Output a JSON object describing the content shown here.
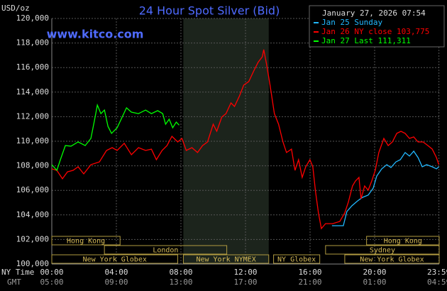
{
  "chart_data": {
    "type": "line",
    "title": "24 Hour Spot Silver (Bid)",
    "website": "www.kitco.com",
    "timestamp": "January 27, 2026 07:54",
    "y_unit": "USD/oz",
    "x_row_labels": [
      "NY Time",
      "GMT"
    ],
    "xlim": [
      0,
      24
    ],
    "xticks": [
      {
        "value": 0,
        "label": "00:00"
      },
      {
        "value": 4,
        "label": "04:00"
      },
      {
        "value": 8,
        "label": "08:00"
      },
      {
        "value": 12,
        "label": "12:00"
      },
      {
        "value": 16,
        "label": "16:00"
      },
      {
        "value": 20,
        "label": "20:00"
      },
      {
        "value": 23.983,
        "label": "23:59"
      }
    ],
    "xticks_gmt": [
      "05:00",
      "09:00",
      "13:00",
      "17:00",
      "21:00",
      "01:00",
      "04:59"
    ],
    "ylim": [
      100000,
      120000
    ],
    "yticks": [
      {
        "value": 100000,
        "label": "100,000"
      },
      {
        "value": 102000,
        "label": "102,000"
      },
      {
        "value": 104000,
        "label": "104,000"
      },
      {
        "value": 106000,
        "label": "106,000"
      },
      {
        "value": 108000,
        "label": "108,000"
      },
      {
        "value": 110000,
        "label": "110,000"
      },
      {
        "value": 112000,
        "label": "112,000"
      },
      {
        "value": 114000,
        "label": "114,000"
      },
      {
        "value": 116000,
        "label": "116,000"
      },
      {
        "value": 118000,
        "label": "118,000"
      },
      {
        "value": 120000,
        "label": "120,000"
      }
    ],
    "grid": true,
    "sessions": [
      {
        "label": "Hong Kong",
        "start": 0,
        "end": 4.23,
        "row": 0
      },
      {
        "label": "Hong Kong",
        "start": 19.5,
        "end": 24,
        "row": 0
      },
      {
        "label": "London",
        "start": 3.26,
        "end": 10.84,
        "row": 1
      },
      {
        "label": "Sydney",
        "start": 16.96,
        "end": 24,
        "row": 1
      },
      {
        "label": "New York Globex",
        "start": 0,
        "end": 7.8,
        "row": 2
      },
      {
        "label": "New York NYMEX",
        "start": 8.15,
        "end": 13.44,
        "row": 2,
        "shaded": true
      },
      {
        "label": "NY Globex",
        "start": 13.74,
        "end": 16.6,
        "row": 2
      },
      {
        "label": "New York Globex",
        "start": 18.15,
        "end": 24,
        "row": 2
      }
    ],
    "series": [
      {
        "name": "Jan 25 Sunday",
        "color": "#22b8ff",
        "x": [
          17.36,
          18.06,
          18.28,
          18.59,
          18.94,
          19.25,
          19.6,
          19.91,
          20.13,
          20.44,
          20.75,
          21.01,
          21.32,
          21.59,
          21.89,
          22.16,
          22.42,
          22.69,
          22.95,
          23.22,
          23.57,
          23.83,
          23.98
        ],
        "values": [
          103120,
          103120,
          104280,
          104740,
          105140,
          105430,
          105610,
          106180,
          107170,
          107750,
          108090,
          107860,
          108320,
          108500,
          109080,
          108790,
          109190,
          108670,
          107920,
          108090,
          107920,
          107750,
          107920
        ]
      },
      {
        "name": "Jan 26 NY close 103,775",
        "color": "#ff0000",
        "x": [
          0,
          0.31,
          0.66,
          0.97,
          1.32,
          1.63,
          1.98,
          2.42,
          2.95,
          3.39,
          3.74,
          4.05,
          4.49,
          4.93,
          5.37,
          5.81,
          6.17,
          6.48,
          6.83,
          7.14,
          7.44,
          7.8,
          8.06,
          8.33,
          8.68,
          9.03,
          9.34,
          9.65,
          10.0,
          10.22,
          10.53,
          10.79,
          11.1,
          11.32,
          11.63,
          11.89,
          12.2,
          12.51,
          12.78,
          13.04,
          13.13,
          13.3,
          13.52,
          13.79,
          14.05,
          14.32,
          14.54,
          14.85,
          15.07,
          15.29,
          15.51,
          15.73,
          15.99,
          16.17,
          16.34,
          16.52,
          16.7,
          16.96,
          17.4,
          17.84,
          18.15,
          18.37,
          18.63,
          18.81,
          19.03,
          19.16,
          19.38,
          19.6,
          19.82,
          20.04,
          20.26,
          20.57,
          20.84,
          21.1,
          21.37,
          21.63,
          21.89,
          22.16,
          22.42,
          22.69,
          23.0,
          23.3,
          23.57,
          23.83,
          23.98
        ],
        "values": [
          107750,
          107630,
          106940,
          107510,
          107630,
          107920,
          107340,
          108090,
          108320,
          109250,
          109480,
          109250,
          109830,
          108900,
          109480,
          109250,
          109360,
          108500,
          109250,
          109650,
          110400,
          109940,
          110230,
          109250,
          109480,
          109080,
          109650,
          109940,
          111390,
          110810,
          111970,
          112250,
          113120,
          112830,
          113700,
          114570,
          114860,
          115720,
          116420,
          116880,
          117460,
          116300,
          114570,
          112250,
          111390,
          109940,
          109080,
          109360,
          107630,
          108500,
          107050,
          107920,
          108500,
          107920,
          105900,
          104160,
          102890,
          103290,
          103290,
          103470,
          104160,
          105030,
          106360,
          106760,
          107050,
          105320,
          106360,
          106010,
          106760,
          107630,
          109080,
          110230,
          109650,
          109940,
          110640,
          110810,
          110640,
          110230,
          110350,
          109940,
          109940,
          109650,
          109360,
          108670,
          108090
        ]
      },
      {
        "name": "Jan 27 Last 111,311",
        "color": "#00ff00",
        "x": [
          0,
          0.31,
          0.53,
          0.84,
          1.19,
          1.63,
          2.07,
          2.42,
          2.64,
          2.82,
          3.04,
          3.26,
          3.48,
          3.7,
          4.05,
          4.36,
          4.63,
          4.93,
          5.37,
          5.81,
          6.17,
          6.56,
          6.87,
          7.05,
          7.27,
          7.49,
          7.71,
          7.89
        ],
        "values": [
          108090,
          107630,
          108500,
          109650,
          109600,
          109940,
          109650,
          110230,
          111680,
          112950,
          112250,
          112540,
          111210,
          110640,
          111100,
          111970,
          112720,
          112370,
          112250,
          112540,
          112250,
          112490,
          112250,
          111390,
          111790,
          111100,
          111560,
          111311
        ]
      }
    ]
  }
}
